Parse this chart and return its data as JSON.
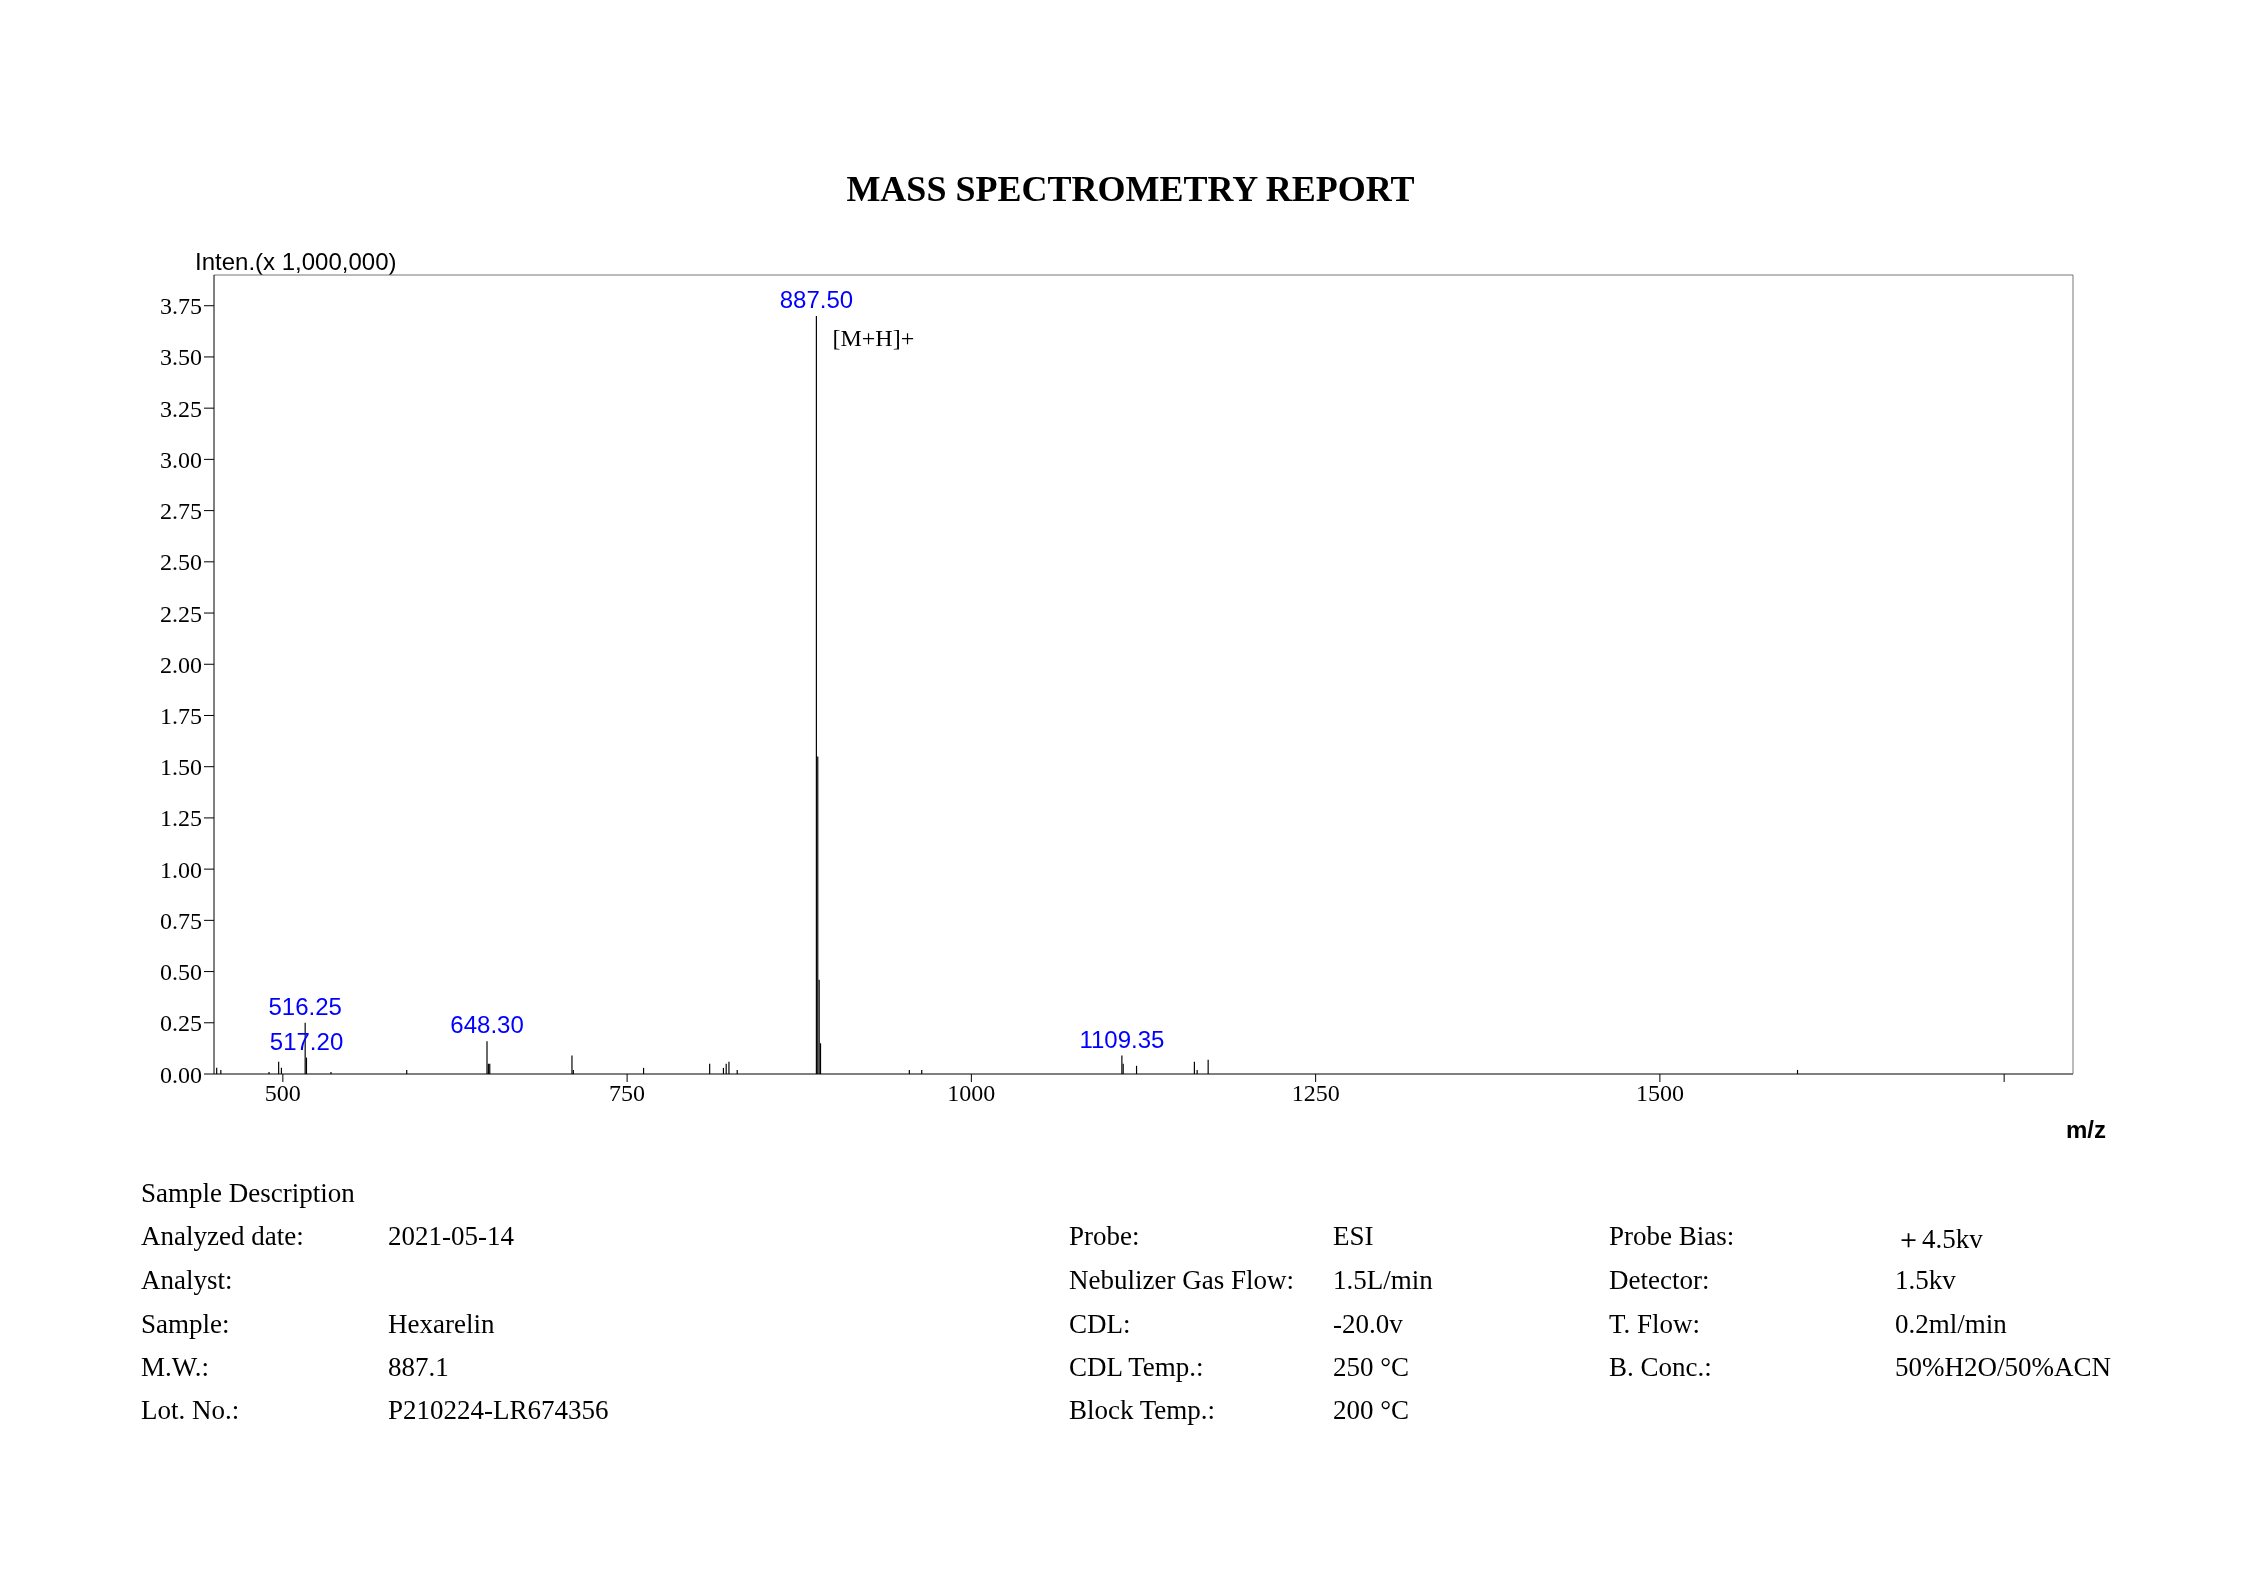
{
  "chart_data": {
    "type": "bar",
    "title": "MASS SPECTROMETRY REPORT",
    "xlabel": "m/z",
    "ylabel": "Inten.(x 1,000,000)",
    "color": "#000000",
    "x": [
      452,
      455,
      490,
      497,
      499,
      516.25,
      517.2,
      535,
      590,
      648.3,
      649.3,
      650.3,
      710,
      711,
      762,
      810,
      820,
      822,
      824,
      830,
      887.5,
      888.5,
      889.5,
      890.5,
      955,
      964,
      1109.35,
      1110.3,
      1120,
      1162,
      1164,
      1172,
      1600
    ],
    "values": [
      0.03,
      0.02,
      0.01,
      0.06,
      0.03,
      0.25,
      0.08,
      0.01,
      0.02,
      0.16,
      0.05,
      0.05,
      0.09,
      0.02,
      0.03,
      0.05,
      0.03,
      0.05,
      0.06,
      0.02,
      3.7,
      1.55,
      0.46,
      0.15,
      0.02,
      0.02,
      0.09,
      0.05,
      0.04,
      0.06,
      0.02,
      0.07,
      0.02
    ],
    "xlim": [
      450,
      1800
    ],
    "xticks": [
      500,
      750,
      1000,
      1250,
      1500,
      {
        "value": 1750,
        "label": null
      }
    ],
    "ylim": [
      0,
      3.9
    ],
    "yticks": [
      {
        "value": 0,
        "label": "0.00"
      },
      {
        "value": 0.25,
        "label": "0.25"
      },
      {
        "value": 0.5,
        "label": "0.50"
      },
      {
        "value": 0.75,
        "label": "0.75"
      },
      {
        "value": 1,
        "label": "1.00"
      },
      {
        "value": 1.25,
        "label": "1.25"
      },
      {
        "value": 1.5,
        "label": "1.50"
      },
      {
        "value": 1.75,
        "label": "1.75"
      },
      {
        "value": 2,
        "label": "2.00"
      },
      {
        "value": 2.25,
        "label": "2.25"
      },
      {
        "value": 2.5,
        "label": "2.50"
      },
      {
        "value": 2.75,
        "label": "2.75"
      },
      {
        "value": 3,
        "label": "3.00"
      },
      {
        "value": 3.25,
        "label": "3.25"
      },
      {
        "value": 3.5,
        "label": "3.50"
      },
      {
        "value": 3.75,
        "label": "3.75"
      }
    ],
    "annotations": [
      {
        "text": "887.50",
        "x": 887.5,
        "y": 3.7
      },
      {
        "text": "[M+H]+",
        "x": 887.5,
        "y": 3.7
      },
      {
        "text": "516.25",
        "x": 516.25,
        "y": 0.25
      },
      {
        "text": "517.20",
        "x": 517.2,
        "y": 0.08
      },
      {
        "text": "648.30",
        "x": 648.3,
        "y": 0.16
      },
      {
        "text": "1109.35",
        "x": 1109.35,
        "y": 0.09
      },
      "Sample Description",
      "Analyzed date:",
      "2021-05-14",
      "Analyst:",
      "Sample:",
      "Hexarelin",
      "M.W.:",
      "887.1",
      "Lot. No.:",
      "P210224-LR674356",
      "Probe:",
      "ESI",
      "Nebulizer Gas Flow:",
      "1.5L/min",
      "CDL:",
      "-20.0v",
      "CDL Temp.:",
      "250 °C",
      "Block Temp.:",
      "200 °C",
      "Probe Bias:",
      "＋4.5kv",
      "Detector:",
      "1.5kv",
      "T. Flow:",
      "0.2ml/min",
      "B. Conc.:",
      "50%H2O/50%ACN"
    ]
  }
}
